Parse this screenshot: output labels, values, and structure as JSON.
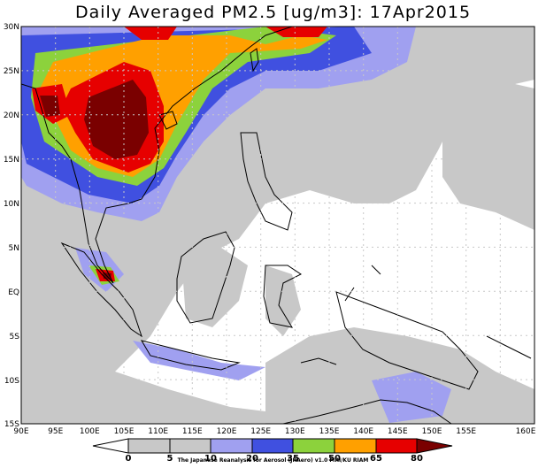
{
  "title": "Daily Averaged PM2.5 [ug/m3]: 17Apr2015",
  "credit": "The Japanese Reanalysis for Aerosol (JRAero) v1.0 MRI/KU RIAM",
  "map": {
    "lat_labels": [
      "30N",
      "25N",
      "20N",
      "15N",
      "10N",
      "5N",
      "EQ",
      "5S",
      "10S",
      "15S"
    ],
    "lon_labels": [
      "90E",
      "95E",
      "100E",
      "105E",
      "110E",
      "115E",
      "120E",
      "125E",
      "130E",
      "135E",
      "140E",
      "145E",
      "150E",
      "155E",
      "160E"
    ]
  },
  "colorbar": {
    "levels": [
      "0",
      "5",
      "10",
      "20",
      "35",
      "50",
      "65",
      "80"
    ],
    "colors": [
      "#ffffff",
      "#c8c8c8",
      "#a0a0f0",
      "#4050e0",
      "#8cd23c",
      "#ffa000",
      "#e60000",
      "#7a0000"
    ]
  }
}
